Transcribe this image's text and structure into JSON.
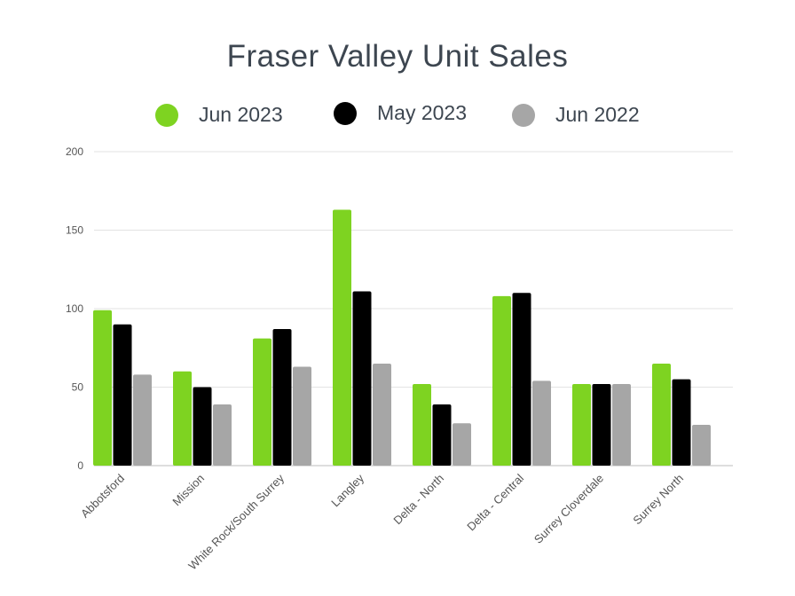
{
  "chart_data": {
    "type": "bar",
    "title": "Fraser Valley Unit Sales",
    "categories": [
      "Abbotsford",
      "Mission",
      "White Rock/South Surrey",
      "Langley",
      "Delta - North",
      "Delta - Central",
      "Surrey Cloverdale",
      "Surrey North"
    ],
    "series": [
      {
        "name": "Jun 2023",
        "color": "#7ed321",
        "values": [
          99,
          60,
          81,
          163,
          52,
          108,
          52,
          65
        ]
      },
      {
        "name": "May 2023",
        "color": "#000000",
        "values": [
          90,
          50,
          87,
          111,
          39,
          110,
          52,
          55
        ]
      },
      {
        "name": "Jun 2022",
        "color": "#a6a6a6",
        "values": [
          58,
          39,
          63,
          65,
          27,
          54,
          52,
          26
        ]
      }
    ],
    "yticks": [
      0,
      50,
      100,
      150,
      200
    ],
    "ylim": [
      0,
      200
    ],
    "grid": true,
    "legend_position": "top"
  }
}
